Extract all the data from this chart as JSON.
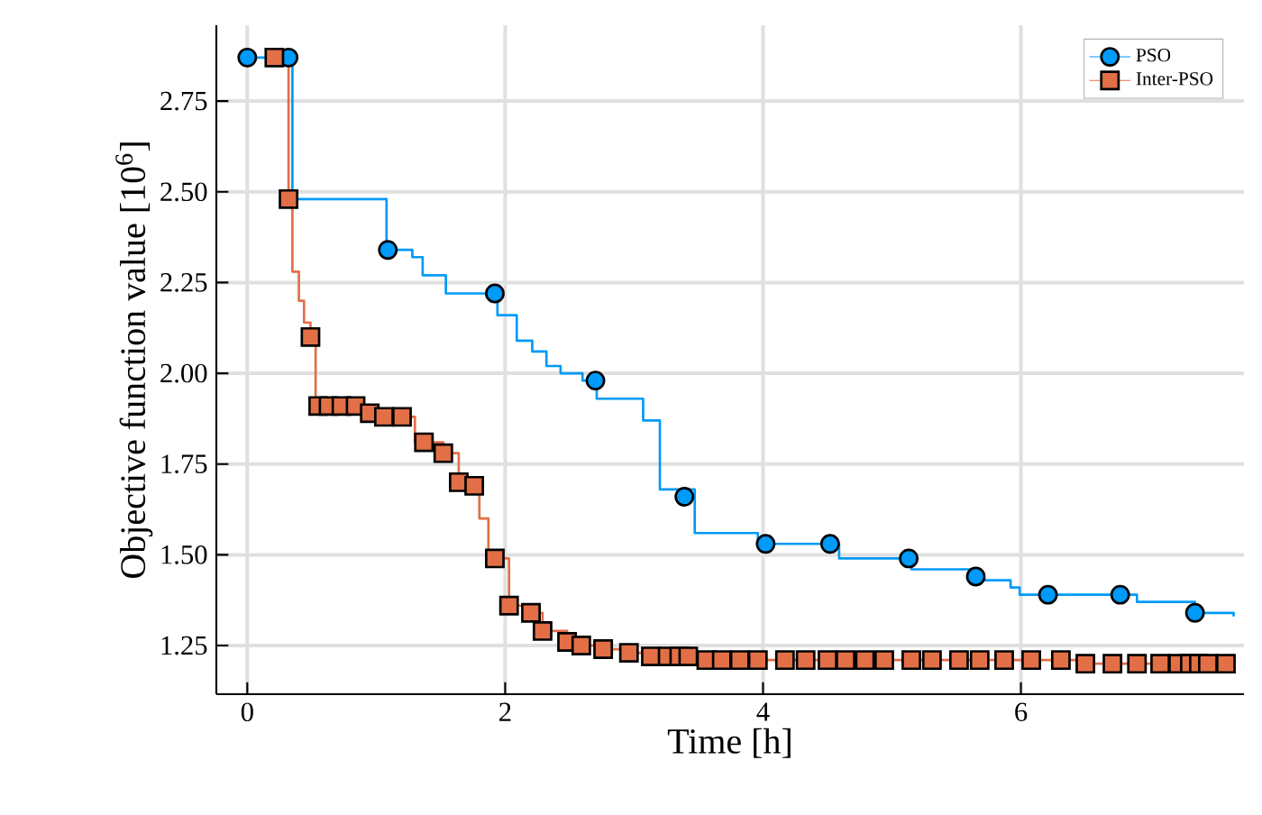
{
  "chart_data": {
    "type": "step",
    "xlabel": "Time [h]",
    "ylabel": "Objective function value [10$^{6}$]",
    "xlim": [
      -0.24,
      7.73
    ],
    "ylim": [
      1.116,
      2.959
    ],
    "xticks": [
      0,
      2,
      4,
      6
    ],
    "yticks": [
      {
        "value": 1.25,
        "label": "1.25"
      },
      {
        "value": 1.5,
        "label": "1.50"
      },
      {
        "value": 1.75,
        "label": "1.75"
      },
      {
        "value": 2.0,
        "label": "2.00"
      },
      {
        "value": 2.25,
        "label": "2.25"
      },
      {
        "value": 2.5,
        "label": "2.50"
      },
      {
        "value": 2.75,
        "label": "2.75"
      }
    ],
    "grid": true,
    "legend": "top right",
    "series": [
      {
        "color": "#009af9",
        "x": [
          0,
          0.35,
          1.08,
          1.28,
          1.36,
          1.54,
          1.94,
          2.09,
          2.21,
          2.32,
          2.43,
          2.6,
          2.71,
          3.07,
          3.2,
          3.47,
          3.96,
          4.59,
          5.15,
          5.68,
          5.92,
          5.99,
          6.9,
          7.35,
          7.65
        ],
        "values": [
          2.87,
          2.48,
          2.34,
          2.32,
          2.27,
          2.22,
          2.16,
          2.09,
          2.06,
          2.02,
          2.0,
          1.98,
          1.93,
          1.87,
          1.68,
          1.56,
          1.53,
          1.49,
          1.46,
          1.43,
          1.41,
          1.39,
          1.37,
          1.34,
          1.33
        ]
      },
      {
        "type": "scatter",
        "name": "PSO",
        "marker": "circle",
        "color": "#009af9",
        "x": [
          0,
          0.32,
          1.09,
          1.92,
          2.7,
          3.39,
          4.02,
          4.52,
          5.13,
          5.65,
          6.21,
          6.77,
          7.35
        ],
        "values": [
          2.87,
          2.87,
          2.34,
          2.22,
          1.98,
          1.66,
          1.53,
          1.53,
          1.49,
          1.44,
          1.39,
          1.39,
          1.34
        ]
      },
      {
        "color": "#e26f46",
        "x": [
          0.21,
          0.32,
          0.35,
          0.4,
          0.44,
          0.49,
          0.53,
          0.95,
          1.06,
          1.3,
          1.37,
          1.52,
          1.64,
          1.8,
          1.87,
          1.92,
          2.03,
          2.2,
          2.29,
          2.48,
          2.59,
          2.76,
          2.96,
          3.13,
          3.56,
          6.5,
          7.59
        ],
        "values": [
          2.87,
          2.48,
          2.28,
          2.2,
          2.14,
          2.1,
          1.91,
          1.89,
          1.88,
          1.81,
          1.81,
          1.78,
          1.7,
          1.6,
          1.49,
          1.49,
          1.36,
          1.34,
          1.29,
          1.26,
          1.25,
          1.24,
          1.23,
          1.22,
          1.21,
          1.2,
          1.2
        ]
      },
      {
        "type": "scatter",
        "name": "Inter-PSO",
        "marker": "square",
        "color": "#e26f46",
        "x": [
          0.21,
          0.32,
          0.49,
          0.55,
          0.63,
          0.73,
          0.84,
          0.95,
          1.06,
          1.2,
          1.37,
          1.52,
          1.64,
          1.76,
          1.92,
          2.03,
          2.2,
          2.29,
          2.48,
          2.59,
          2.76,
          2.96,
          3.13,
          3.26,
          3.35,
          3.42,
          3.56,
          3.68,
          3.82,
          3.96,
          4.17,
          4.33,
          4.5,
          4.64,
          4.79,
          4.94,
          5.15,
          5.31,
          5.52,
          5.68,
          5.87,
          6.08,
          6.31,
          6.5,
          6.71,
          6.9,
          7.08,
          7.22,
          7.31,
          7.38,
          7.45,
          7.59
        ],
        "values": [
          2.87,
          2.48,
          2.1,
          1.91,
          1.91,
          1.91,
          1.91,
          1.89,
          1.88,
          1.88,
          1.81,
          1.78,
          1.7,
          1.69,
          1.49,
          1.36,
          1.34,
          1.29,
          1.26,
          1.25,
          1.24,
          1.23,
          1.22,
          1.22,
          1.22,
          1.22,
          1.21,
          1.21,
          1.21,
          1.21,
          1.21,
          1.21,
          1.21,
          1.21,
          1.21,
          1.21,
          1.21,
          1.21,
          1.21,
          1.21,
          1.21,
          1.21,
          1.21,
          1.2,
          1.2,
          1.2,
          1.2,
          1.2,
          1.2,
          1.2,
          1.2,
          1.2
        ]
      }
    ]
  }
}
